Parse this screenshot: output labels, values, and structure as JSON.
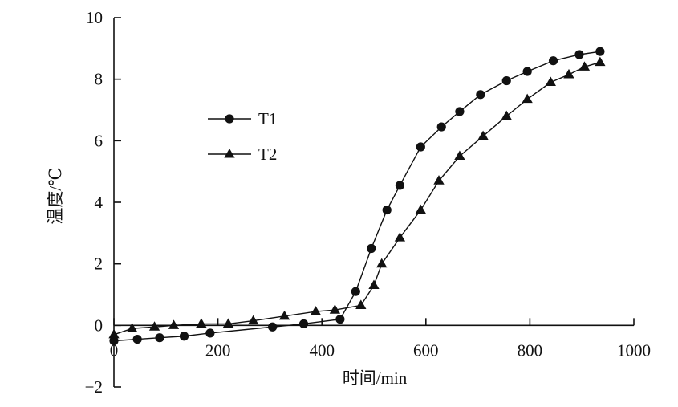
{
  "chart_data": {
    "type": "line",
    "xlabel": "时间/min",
    "ylabel": "温度/℃",
    "xlim": [
      0,
      1000
    ],
    "ylim": [
      -2,
      10
    ],
    "xticks": [
      0,
      200,
      400,
      600,
      800,
      1000
    ],
    "yticks": [
      -2,
      0,
      2,
      4,
      6,
      8,
      10
    ],
    "xtick_labels": [
      "0",
      "200",
      "400",
      "600",
      "800",
      "1000"
    ],
    "ytick_labels": [
      "−2",
      "0",
      "2",
      "4",
      "6",
      "8",
      "10"
    ],
    "grid": false,
    "legend_position": "center-left",
    "colors": {
      "line": "#111111",
      "marker": "#111111"
    },
    "series": [
      {
        "name": "T1",
        "marker": "circle",
        "x": [
          0,
          45,
          88,
          135,
          185,
          305,
          365,
          435,
          465,
          495,
          525,
          550,
          590,
          630,
          665,
          705,
          755,
          795,
          845,
          895,
          935
        ],
        "y": [
          -0.5,
          -0.45,
          -0.4,
          -0.35,
          -0.25,
          -0.05,
          0.05,
          0.2,
          1.1,
          2.5,
          3.75,
          4.55,
          5.8,
          6.45,
          6.95,
          7.5,
          7.95,
          8.25,
          8.6,
          8.8,
          8.9
        ]
      },
      {
        "name": "T2",
        "marker": "triangle",
        "x": [
          0,
          35,
          78,
          115,
          168,
          220,
          268,
          328,
          388,
          425,
          475,
          500,
          515,
          550,
          590,
          625,
          665,
          710,
          755,
          795,
          840,
          875,
          905,
          935
        ],
        "y": [
          -0.3,
          -0.1,
          -0.05,
          0.0,
          0.05,
          0.05,
          0.15,
          0.3,
          0.45,
          0.5,
          0.65,
          1.3,
          2.0,
          2.85,
          3.75,
          4.7,
          5.5,
          6.15,
          6.8,
          7.35,
          7.9,
          8.15,
          8.4,
          8.55
        ]
      }
    ]
  }
}
